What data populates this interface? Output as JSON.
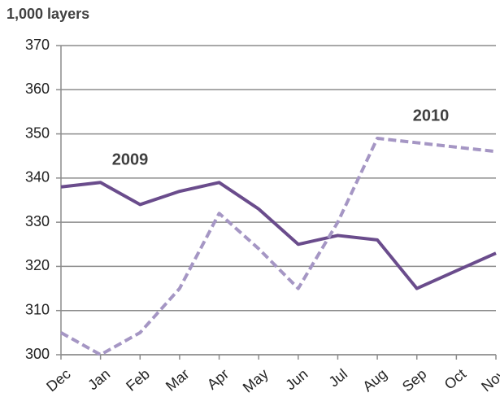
{
  "chart_data": {
    "type": "line",
    "y_axis_label": "1,000 layers",
    "categories": [
      "Dec",
      "Jan",
      "Feb",
      "Mar",
      "Apr",
      "May",
      "Jun",
      "Jul",
      "Aug",
      "Sep",
      "Oct",
      "Nov"
    ],
    "series": [
      {
        "name": "2009",
        "color": "#6a4c8c",
        "dashed": false,
        "values": [
          338,
          339,
          334,
          337,
          339,
          333,
          325,
          327,
          326,
          315,
          319,
          323
        ]
      },
      {
        "name": "2010",
        "color": "#a596c4",
        "dashed": true,
        "values": [
          305,
          300,
          305,
          315,
          332,
          324,
          315,
          330,
          349,
          348,
          347,
          346
        ]
      }
    ],
    "ylim": [
      300,
      370
    ],
    "yticks": [
      300,
      310,
      320,
      330,
      340,
      350,
      360,
      370
    ],
    "grid": true
  }
}
